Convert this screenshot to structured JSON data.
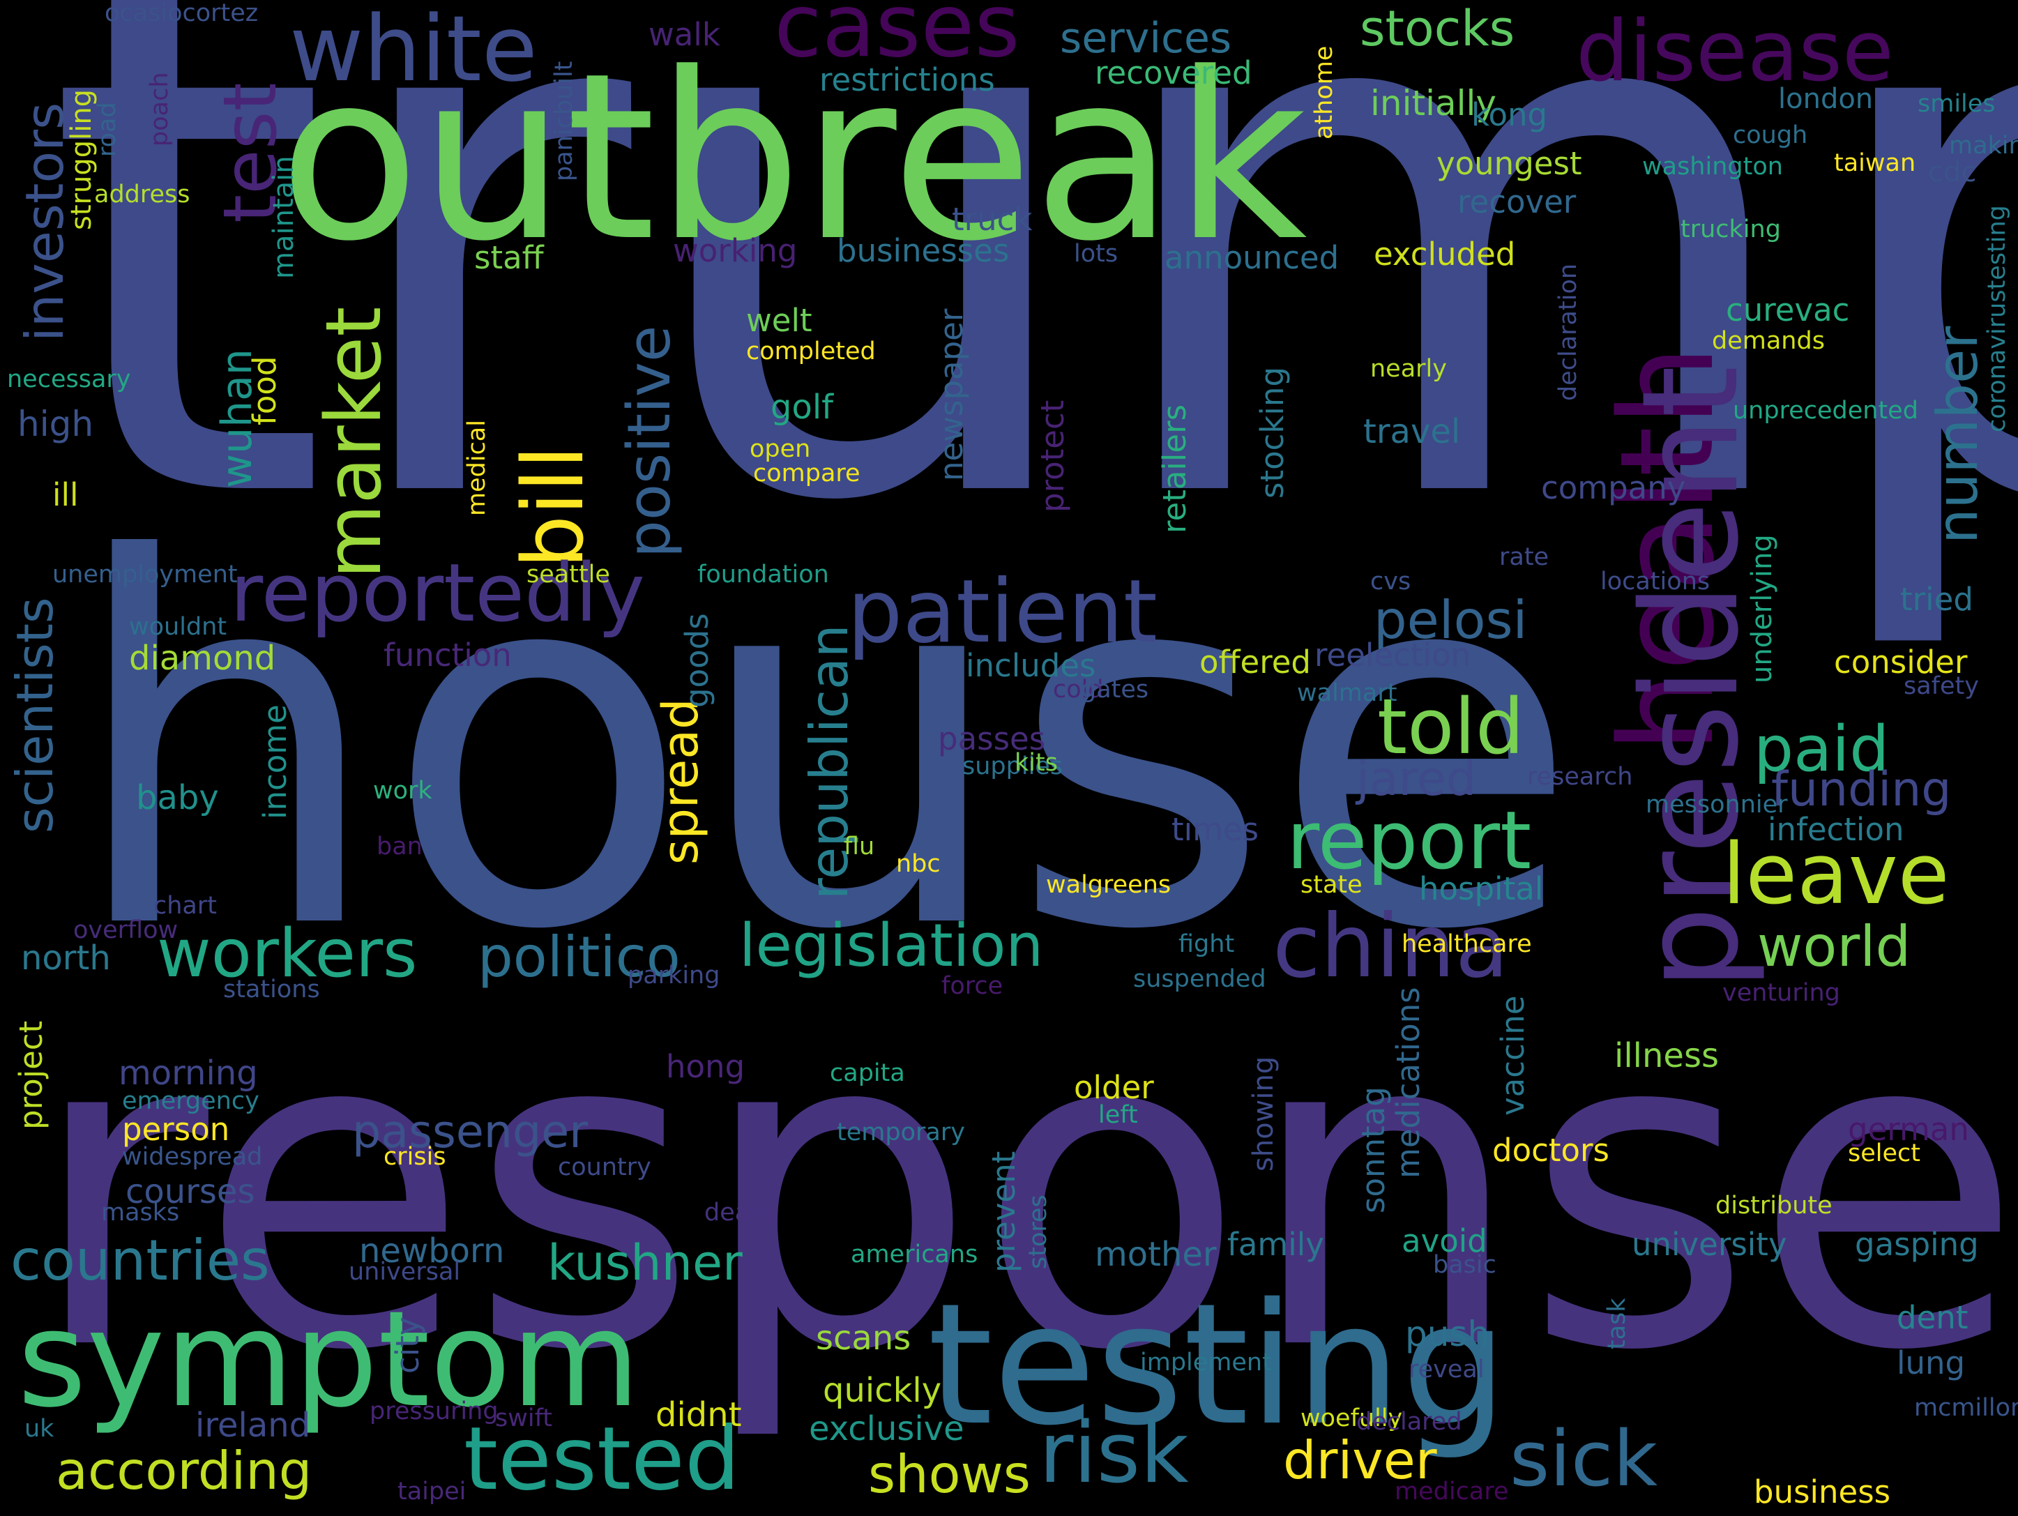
{
  "words": [
    {
      "text": "trump",
      "color": "#3e4a89"
    },
    {
      "text": "house",
      "color": "#3b528b"
    },
    {
      "text": "response",
      "color": "#46337e"
    },
    {
      "text": "outbreak",
      "color": "#6ccd5a"
    },
    {
      "text": "symptom",
      "color": "#3fbc73"
    },
    {
      "text": "testing",
      "color": "#2f6c8e"
    },
    {
      "text": "health",
      "color": "#440154"
    },
    {
      "text": "president",
      "color": "#472d7b"
    },
    {
      "text": "cases",
      "color": "#450559"
    },
    {
      "text": "disease",
      "color": "#46085c"
    },
    {
      "text": "white",
      "color": "#3e4c8a"
    },
    {
      "text": "test",
      "color": "#482576"
    },
    {
      "text": "market",
      "color": "#9bd93c"
    },
    {
      "text": "bill",
      "color": "#fde725"
    },
    {
      "text": "positive",
      "color": "#35608d"
    },
    {
      "text": "reportedly",
      "color": "#453581"
    },
    {
      "text": "patient",
      "color": "#3e4989"
    },
    {
      "text": "number",
      "color": "#2c728e"
    },
    {
      "text": "told",
      "color": "#7ad151"
    },
    {
      "text": "paid",
      "color": "#29af7f"
    },
    {
      "text": "report",
      "color": "#3dbc74"
    },
    {
      "text": "leave",
      "color": "#b5de2b"
    },
    {
      "text": "china",
      "color": "#453882"
    },
    {
      "text": "world",
      "color": "#75d054"
    },
    {
      "text": "workers",
      "color": "#22a785"
    },
    {
      "text": "politico",
      "color": "#2d708e"
    },
    {
      "text": "legislation",
      "color": "#20a386"
    },
    {
      "text": "countries",
      "color": "#2a788e"
    },
    {
      "text": "kushner",
      "color": "#22a785"
    },
    {
      "text": "tested",
      "color": "#1f9e89"
    },
    {
      "text": "risk",
      "color": "#2c728e"
    },
    {
      "text": "sick",
      "color": "#31688e"
    },
    {
      "text": "according",
      "color": "#c2df23"
    },
    {
      "text": "driver",
      "color": "#fde725"
    },
    {
      "text": "shows",
      "color": "#c8e020"
    },
    {
      "text": "stocks",
      "color": "#5ec962"
    },
    {
      "text": "services",
      "color": "#2d708e"
    },
    {
      "text": "restrictions",
      "color": "#26828e"
    },
    {
      "text": "recovered",
      "color": "#3aba76"
    },
    {
      "text": "initially",
      "color": "#6ece58"
    },
    {
      "text": "walk",
      "color": "#482374"
    },
    {
      "text": "investors",
      "color": "#3b528b"
    },
    {
      "text": "scientists",
      "color": "#33638d"
    },
    {
      "text": "wuhan",
      "color": "#1f968b"
    },
    {
      "text": "food",
      "color": "#d2e21b"
    },
    {
      "text": "republican",
      "color": "#277f8e"
    },
    {
      "text": "spread",
      "color": "#fde725"
    },
    {
      "text": "pelosi",
      "color": "#33638d"
    },
    {
      "text": "jared",
      "color": "#3e4a89"
    },
    {
      "text": "funding",
      "color": "#3f4788"
    },
    {
      "text": "infection",
      "color": "#287d8e"
    },
    {
      "text": "hospital",
      "color": "#25858e"
    },
    {
      "text": "passenger",
      "color": "#3b528b"
    },
    {
      "text": "morning",
      "color": "#404688"
    },
    {
      "text": "courses",
      "color": "#3b528b"
    },
    {
      "text": "newborn",
      "color": "#31688e"
    },
    {
      "text": "mother",
      "color": "#2e6f8e"
    },
    {
      "text": "family",
      "color": "#2a788e"
    },
    {
      "text": "avoid",
      "color": "#20a386"
    },
    {
      "text": "university",
      "color": "#2a788e"
    },
    {
      "text": "gasping",
      "color": "#2a788e"
    },
    {
      "text": "illness",
      "color": "#86d549"
    },
    {
      "text": "older",
      "color": "#dde318"
    },
    {
      "text": "doctors",
      "color": "#fde725"
    },
    {
      "text": "german",
      "color": "#48186a"
    },
    {
      "text": "push",
      "color": "#2c728e"
    },
    {
      "text": "dent",
      "color": "#25858e"
    },
    {
      "text": "lung",
      "color": "#33638d"
    },
    {
      "text": "scans",
      "color": "#9bd93c"
    },
    {
      "text": "quickly",
      "color": "#b5de2b"
    },
    {
      "text": "exclusive",
      "color": "#1f988b"
    },
    {
      "text": "didnt",
      "color": "#d8e219"
    },
    {
      "text": "ireland",
      "color": "#3e4a89"
    },
    {
      "text": "business",
      "color": "#fde725"
    },
    {
      "text": "diamond",
      "color": "#a5db36"
    },
    {
      "text": "baby",
      "color": "#21918c"
    },
    {
      "text": "north",
      "color": "#2a788e"
    },
    {
      "text": "person",
      "color": "#fde725"
    },
    {
      "text": "high",
      "color": "#3b528b"
    },
    {
      "text": "ill",
      "color": "#d0e11c"
    },
    {
      "text": "golf",
      "color": "#22a884"
    },
    {
      "text": "travel",
      "color": "#2c728e"
    },
    {
      "text": "company",
      "color": "#3e4989"
    },
    {
      "text": "tried",
      "color": "#2c728e"
    },
    {
      "text": "consider",
      "color": "#e5e419"
    },
    {
      "text": "offered",
      "color": "#c2df23"
    },
    {
      "text": "includes",
      "color": "#2a788e"
    },
    {
      "text": "reelection",
      "color": "#3e4a89"
    },
    {
      "text": "function",
      "color": "#482878"
    },
    {
      "text": "passes",
      "color": "#472c7a"
    },
    {
      "text": "hong",
      "color": "#482677"
    },
    {
      "text": "youngest",
      "color": "#a8db34"
    },
    {
      "text": "recover",
      "color": "#31688e"
    },
    {
      "text": "kong",
      "color": "#2a788e"
    },
    {
      "text": "excluded",
      "color": "#d0e11c"
    },
    {
      "text": "announced",
      "color": "#2d708e"
    },
    {
      "text": "businesses",
      "color": "#2c728e"
    },
    {
      "text": "working",
      "color": "#482173"
    },
    {
      "text": "staff",
      "color": "#7ad151"
    },
    {
      "text": "truck",
      "color": "#3b528b"
    },
    {
      "text": "welt",
      "color": "#6ece58"
    },
    {
      "text": "curevac",
      "color": "#29af7f"
    },
    {
      "text": "london",
      "color": "#2c728e"
    },
    {
      "text": "cdc",
      "color": "#3b528b"
    },
    {
      "text": "cough",
      "color": "#2d708e"
    },
    {
      "text": "smiles",
      "color": "#26828e"
    },
    {
      "text": "making",
      "color": "#2f6b8e"
    },
    {
      "text": "taiwan",
      "color": "#fde725"
    },
    {
      "text": "washington",
      "color": "#1f9e89"
    },
    {
      "text": "trucking",
      "color": "#3fbc73"
    },
    {
      "text": "demands",
      "color": "#d2e21b"
    },
    {
      "text": "nearly",
      "color": "#b8de29"
    },
    {
      "text": "unprecedented",
      "color": "#22a884"
    },
    {
      "text": "coronavirustesting",
      "color": "#277f8e"
    },
    {
      "text": "completed",
      "color": "#fde725"
    },
    {
      "text": "open",
      "color": "#dde318"
    },
    {
      "text": "compare",
      "color": "#f1e51d"
    },
    {
      "text": "seattle",
      "color": "#bddf26"
    },
    {
      "text": "foundation",
      "color": "#1f9e89"
    },
    {
      "text": "necessary",
      "color": "#22a884"
    },
    {
      "text": "unemployment",
      "color": "#355f8d"
    },
    {
      "text": "wouldnt",
      "color": "#2d708e"
    },
    {
      "text": "struggling",
      "color": "#c8e020"
    },
    {
      "text": "ocasiocortez",
      "color": "#3b528b"
    },
    {
      "text": "road",
      "color": "#33638d"
    },
    {
      "text": "address",
      "color": "#b5de2b"
    },
    {
      "text": "poach",
      "color": "#482475"
    },
    {
      "text": "maintain",
      "color": "#1f968b"
    },
    {
      "text": "panicbuilt",
      "color": "#39558c"
    },
    {
      "text": "athome",
      "color": "#fde725"
    },
    {
      "text": "lots",
      "color": "#3b528b"
    },
    {
      "text": "declaration",
      "color": "#3e4c8a"
    },
    {
      "text": "newspaper",
      "color": "#33638d"
    },
    {
      "text": "protect",
      "color": "#482374"
    },
    {
      "text": "retailers",
      "color": "#29af7f"
    },
    {
      "text": "stocking",
      "color": "#2a788e"
    },
    {
      "text": "underlying",
      "color": "#22a884"
    },
    {
      "text": "rate",
      "color": "#3e4a89"
    },
    {
      "text": "cvs",
      "color": "#3b528b"
    },
    {
      "text": "locations",
      "color": "#3e4c8a"
    },
    {
      "text": "safety",
      "color": "#3e4989"
    },
    {
      "text": "medical",
      "color": "#fde725"
    },
    {
      "text": "cold",
      "color": "#482878"
    },
    {
      "text": "gates",
      "color": "#3b528b"
    },
    {
      "text": "walmart",
      "color": "#2d708e"
    },
    {
      "text": "supplies",
      "color": "#2c728e"
    },
    {
      "text": "kits",
      "color": "#7ad151"
    },
    {
      "text": "research",
      "color": "#404688"
    },
    {
      "text": "messonnier",
      "color": "#2c728e"
    },
    {
      "text": "goods",
      "color": "#2c728e"
    },
    {
      "text": "income",
      "color": "#21918c"
    },
    {
      "text": "work",
      "color": "#2db27d"
    },
    {
      "text": "ban",
      "color": "#481c6e"
    },
    {
      "text": "times",
      "color": "#3e4a89"
    },
    {
      "text": "flu",
      "color": "#9fda3a"
    },
    {
      "text": "nbc",
      "color": "#fde725"
    },
    {
      "text": "walgreens",
      "color": "#fde725"
    },
    {
      "text": "state",
      "color": "#dde318"
    },
    {
      "text": "chart",
      "color": "#404688"
    },
    {
      "text": "overflow",
      "color": "#472c7a"
    },
    {
      "text": "stations",
      "color": "#3b528b"
    },
    {
      "text": "parking",
      "color": "#3e4a89"
    },
    {
      "text": "fight",
      "color": "#2a788e"
    },
    {
      "text": "healthcare",
      "color": "#fde725"
    },
    {
      "text": "suspended",
      "color": "#2c728e"
    },
    {
      "text": "force",
      "color": "#481a6c"
    },
    {
      "text": "venturing",
      "color": "#482173"
    },
    {
      "text": "showing",
      "color": "#3e4c8a"
    },
    {
      "text": "vaccine",
      "color": "#2a788e"
    },
    {
      "text": "sonntag",
      "color": "#2f6b8e"
    },
    {
      "text": "medications",
      "color": "#31688e"
    },
    {
      "text": "prevent",
      "color": "#2a788e"
    },
    {
      "text": "capita",
      "color": "#22a884"
    },
    {
      "text": "left",
      "color": "#22a884"
    },
    {
      "text": "project",
      "color": "#bddf26"
    },
    {
      "text": "emergency",
      "color": "#277f8e"
    },
    {
      "text": "widespread",
      "color": "#39558c"
    },
    {
      "text": "crisis",
      "color": "#fde725"
    },
    {
      "text": "country",
      "color": "#3e4c8a"
    },
    {
      "text": "temporary",
      "color": "#2a788e"
    },
    {
      "text": "select",
      "color": "#fde725"
    },
    {
      "text": "distribute",
      "color": "#bddf26"
    },
    {
      "text": "masks",
      "color": "#39558c"
    },
    {
      "text": "death",
      "color": "#46327e"
    },
    {
      "text": "stores",
      "color": "#2d708e"
    },
    {
      "text": "americans",
      "color": "#22a884"
    },
    {
      "text": "universal",
      "color": "#3e4989"
    },
    {
      "text": "basic",
      "color": "#3b528b"
    },
    {
      "text": "task",
      "color": "#2d708e"
    },
    {
      "text": "implement",
      "color": "#2a788e"
    },
    {
      "text": "reveal",
      "color": "#3e4989"
    },
    {
      "text": "mcmillon",
      "color": "#39558c"
    },
    {
      "text": "pressuring",
      "color": "#482576"
    },
    {
      "text": "swift",
      "color": "#482878"
    },
    {
      "text": "uk",
      "color": "#2a788e"
    },
    {
      "text": "city",
      "color": "#3b528b"
    },
    {
      "text": "taipei",
      "color": "#482878"
    },
    {
      "text": "woefully",
      "color": "#d2e21b"
    },
    {
      "text": "declared",
      "color": "#472d7b"
    },
    {
      "text": "medicare",
      "color": "#46085c"
    }
  ]
}
